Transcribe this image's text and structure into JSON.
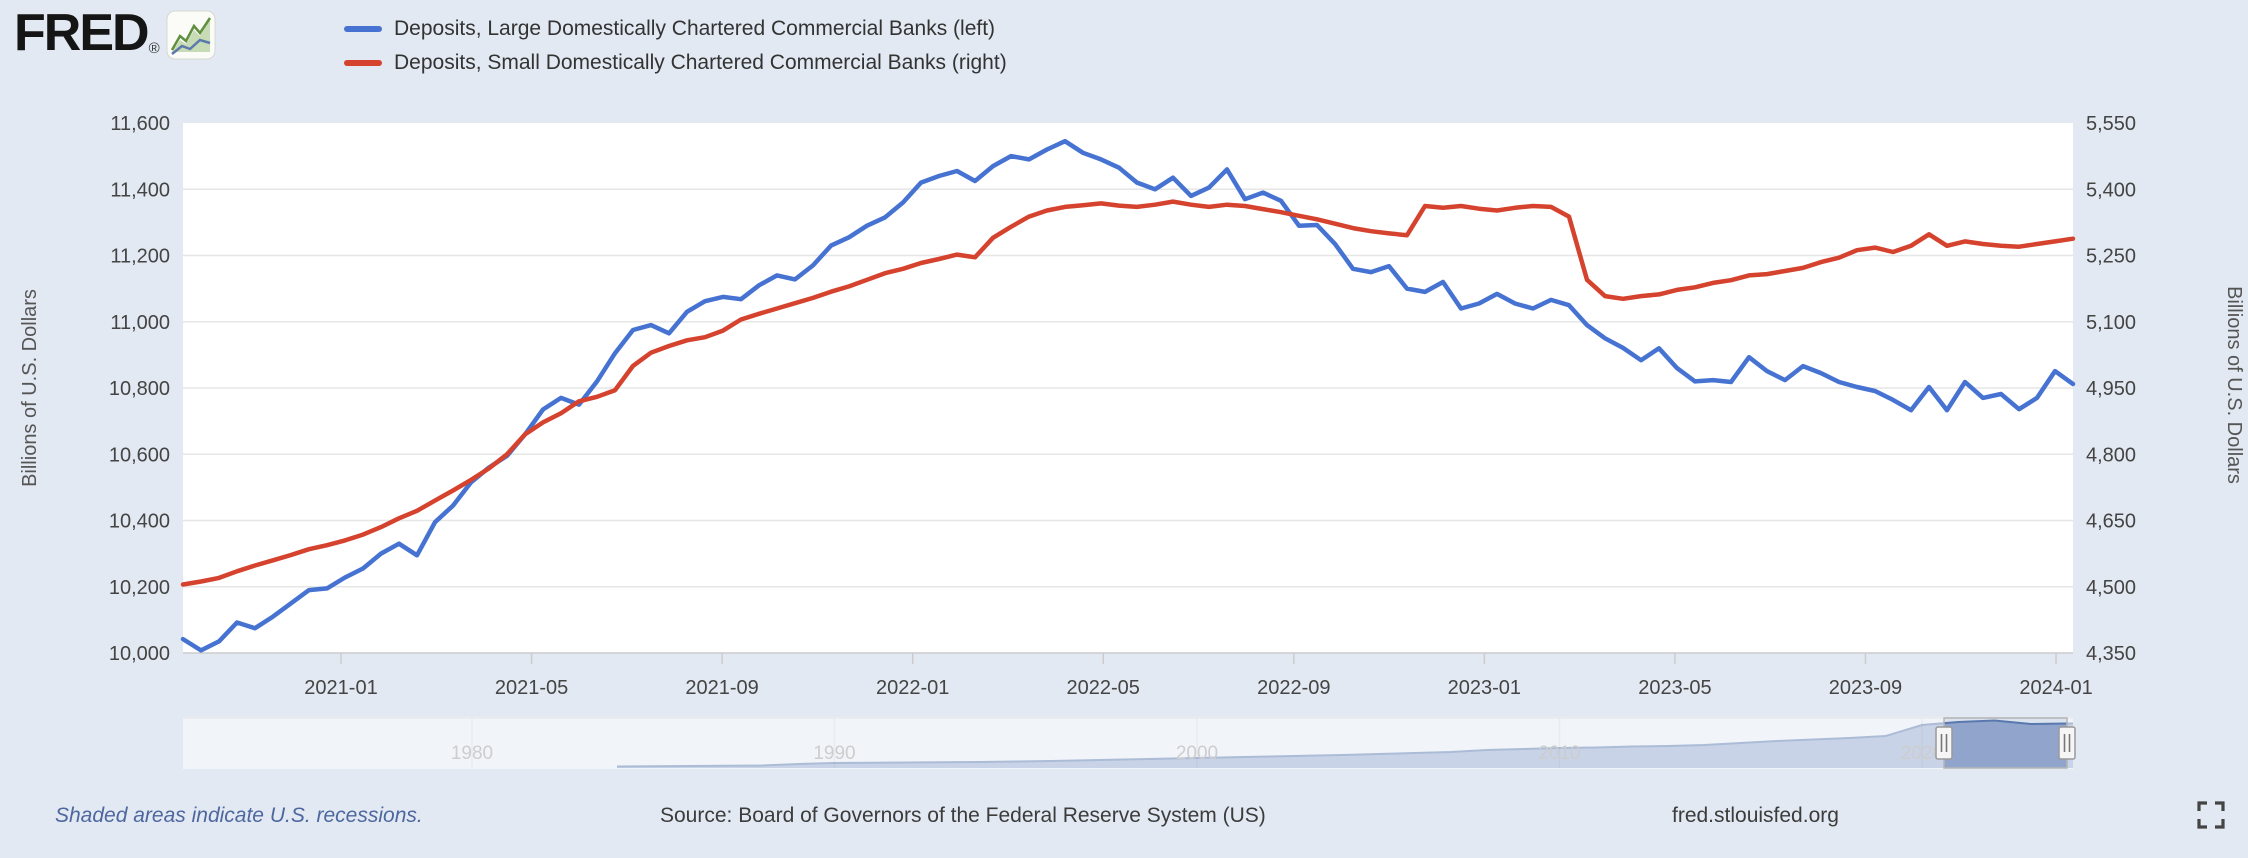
{
  "brand": {
    "logo_text": "FRED",
    "registered_mark": "®",
    "logo_chart_icon": "fred-graph-icon"
  },
  "legend": [
    {
      "label": "Deposits, Large Domestically Chartered Commercial Banks (left)",
      "color": "#4673d2"
    },
    {
      "label": "Deposits, Small Domestically Chartered Commercial Banks (right)",
      "color": "#d5432e"
    }
  ],
  "footer": {
    "recession_note": "Shaded areas indicate U.S. recessions.",
    "source": "Source: Board of Governors of the Federal Reserve System (US)",
    "site": "fred.stlouisfed.org",
    "expand_icon": "fullscreen-icon"
  },
  "chart_data": {
    "type": "line",
    "title": "",
    "x_ticks": [
      "2021-01",
      "2021-05",
      "2021-09",
      "2022-01",
      "2022-05",
      "2022-09",
      "2023-01",
      "2023-05",
      "2023-09",
      "2024-01"
    ],
    "x_range": [
      "2020-09-27",
      "2024-01-10"
    ],
    "grid": "horizontal",
    "y_left": {
      "title": "Billions of U.S. Dollars",
      "min": 10000,
      "max": 11600,
      "ticks": [
        "11,600",
        "11,400",
        "11,200",
        "11,000",
        "10,800",
        "10,600",
        "10,400",
        "10,200",
        "10,000"
      ]
    },
    "y_right": {
      "title": "Billions of U.S. Dollars",
      "min": 4350,
      "max": 5550,
      "ticks": [
        "5,550",
        "5,400",
        "5,250",
        "5,100",
        "4,950",
        "4,800",
        "4,650",
        "4,500",
        "4,350"
      ]
    },
    "series": [
      {
        "name": "Deposits, Large Domestically Chartered Commercial Banks",
        "axis": "left",
        "color": "#4673d2",
        "values": [
          10042,
          10008,
          10035,
          10092,
          10075,
          10110,
          10150,
          10190,
          10195,
          10228,
          10255,
          10300,
          10330,
          10295,
          10395,
          10445,
          10515,
          10560,
          10595,
          10660,
          10735,
          10770,
          10750,
          10820,
          10905,
          10975,
          10990,
          10965,
          11030,
          11062,
          11075,
          11068,
          11110,
          11140,
          11128,
          11170,
          11230,
          11255,
          11290,
          11315,
          11360,
          11420,
          11440,
          11455,
          11425,
          11470,
          11500,
          11490,
          11520,
          11545,
          11510,
          11490,
          11465,
          11420,
          11400,
          11435,
          11380,
          11405,
          11460,
          11370,
          11390,
          11365,
          11290,
          11292,
          11235,
          11160,
          11150,
          11168,
          11100,
          11090,
          11120,
          11040,
          11055,
          11084,
          11055,
          11040,
          11066,
          11050,
          10990,
          10950,
          10921,
          10884,
          10920,
          10860,
          10820,
          10824,
          10818,
          10893,
          10851,
          10824,
          10866,
          10845,
          10818,
          10803,
          10791,
          10764,
          10733,
          10803,
          10733,
          10818,
          10770,
          10782,
          10736,
          10770,
          10851,
          10812
        ]
      },
      {
        "name": "Deposits, Small Domestically Chartered Commercial Banks",
        "axis": "right",
        "color": "#d5432e",
        "values": [
          4505,
          4512,
          4520,
          4535,
          4548,
          4560,
          4572,
          4585,
          4594,
          4605,
          4618,
          4635,
          4655,
          4672,
          4695,
          4718,
          4742,
          4768,
          4800,
          4845,
          4872,
          4893,
          4920,
          4930,
          4945,
          5000,
          5030,
          5045,
          5058,
          5065,
          5080,
          5105,
          5118,
          5130,
          5142,
          5154,
          5168,
          5180,
          5195,
          5210,
          5220,
          5233,
          5242,
          5252,
          5246,
          5290,
          5315,
          5338,
          5352,
          5360,
          5364,
          5368,
          5363,
          5360,
          5365,
          5372,
          5365,
          5360,
          5365,
          5362,
          5355,
          5348,
          5340,
          5332,
          5322,
          5312,
          5305,
          5300,
          5296,
          5362,
          5358,
          5362,
          5356,
          5352,
          5358,
          5362,
          5360,
          5338,
          5195,
          5158,
          5152,
          5158,
          5162,
          5172,
          5178,
          5188,
          5194,
          5205,
          5208,
          5215,
          5222,
          5235,
          5245,
          5262,
          5268,
          5258,
          5272,
          5298,
          5272,
          5282,
          5276,
          5272,
          5270,
          5276,
          5282,
          5288
        ]
      }
    ],
    "navigator": {
      "labels": [
        "1980",
        "1990",
        "2000",
        "2010",
        "2020"
      ],
      "start_year": 1984,
      "end_year": 2024,
      "heights": [
        0.03,
        0.035,
        0.04,
        0.045,
        0.05,
        0.08,
        0.1,
        0.105,
        0.11,
        0.115,
        0.12,
        0.13,
        0.14,
        0.155,
        0.17,
        0.185,
        0.2,
        0.215,
        0.23,
        0.245,
        0.26,
        0.28,
        0.3,
        0.32,
        0.36,
        0.38,
        0.4,
        0.41,
        0.43,
        0.44,
        0.46,
        0.5,
        0.54,
        0.57,
        0.6,
        0.64,
        0.86,
        0.92,
        0.95,
        0.88,
        0.89
      ],
      "selected_range": [
        "2020-09",
        "2024-01"
      ]
    }
  }
}
